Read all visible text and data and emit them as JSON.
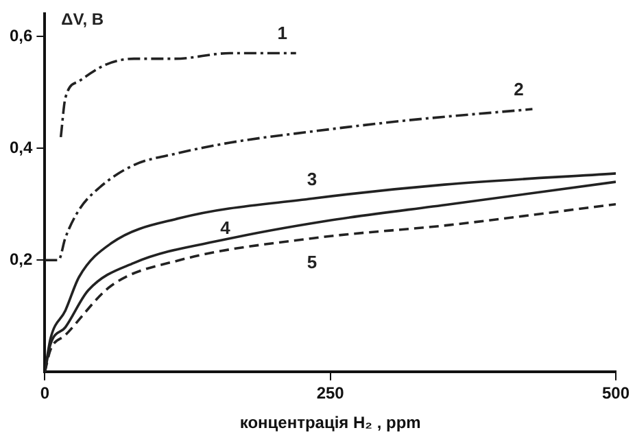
{
  "chart_data": {
    "type": "line",
    "xlabel": "концентрація H₂ , ppm",
    "ylabel": "ΔV, B",
    "xlim": [
      0,
      500
    ],
    "xticks": [
      0,
      250,
      500
    ],
    "ylim": [
      0,
      0.64
    ],
    "yticks": [
      {
        "value": 0.2,
        "label": "0,2"
      },
      {
        "value": 0.4,
        "label": "0,4"
      },
      {
        "value": 0.6,
        "label": "0,6"
      }
    ],
    "grid": false,
    "legend": false,
    "marker": "none",
    "series": [
      {
        "name": "1",
        "color": "#222222",
        "line_style": "dashdot",
        "x": [
          14,
          18,
          30,
          54,
          78,
          114,
          162,
          220
        ],
        "values": [
          0.42,
          0.49,
          0.52,
          0.55,
          0.56,
          0.56,
          0.57,
          0.57
        ]
      },
      {
        "name": "2",
        "color": "#222222",
        "line_style": "dashdot",
        "x": [
          0,
          12,
          18,
          30,
          48,
          78,
          114,
          162,
          234,
          318,
          427
        ],
        "values": [
          0.2,
          0.2,
          0.24,
          0.29,
          0.33,
          0.37,
          0.39,
          0.41,
          0.43,
          0.45,
          0.47
        ]
      },
      {
        "name": "3",
        "color": "#222222",
        "line_style": "solid",
        "x": [
          0,
          5,
          18,
          30,
          58,
          118,
          234,
          350,
          500
        ],
        "values": [
          0,
          0.06,
          0.11,
          0.17,
          0.23,
          0.275,
          0.31,
          0.335,
          0.355
        ]
      },
      {
        "name": "4",
        "color": "#222222",
        "line_style": "solid",
        "x": [
          0,
          5,
          18,
          38,
          78,
          158,
          246,
          355,
          500
        ],
        "values": [
          0,
          0.05,
          0.08,
          0.146,
          0.195,
          0.237,
          0.27,
          0.3,
          0.34
        ]
      },
      {
        "name": "5",
        "color": "#222222",
        "line_style": "dashed",
        "x": [
          0,
          5,
          18,
          58,
          118,
          234,
          355,
          500
        ],
        "values": [
          0,
          0.04,
          0.066,
          0.154,
          0.2,
          0.239,
          0.263,
          0.3
        ]
      }
    ]
  }
}
